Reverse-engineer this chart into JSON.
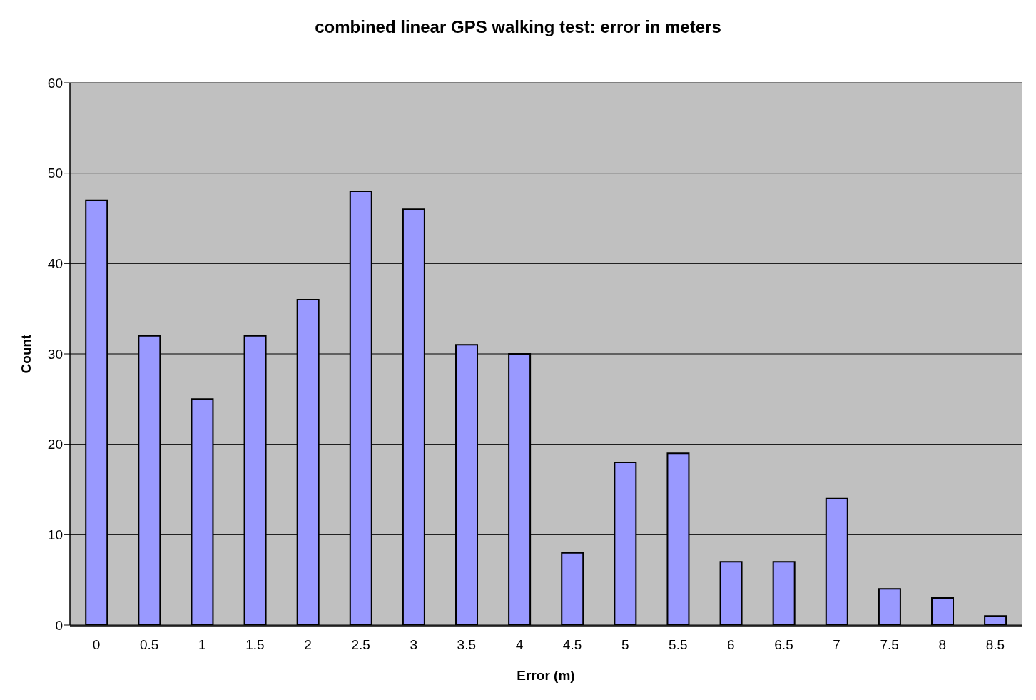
{
  "chart_data": {
    "type": "bar",
    "title": "combined linear GPS walking test: error in meters",
    "xlabel": "Error (m)",
    "ylabel": "Count",
    "categories": [
      "0",
      "0.5",
      "1",
      "1.5",
      "2",
      "2.5",
      "3",
      "3.5",
      "4",
      "4.5",
      "5",
      "5.5",
      "6",
      "6.5",
      "7",
      "7.5",
      "8",
      "8.5"
    ],
    "values": [
      47,
      32,
      25,
      32,
      36,
      48,
      46,
      31,
      30,
      8,
      18,
      19,
      7,
      7,
      14,
      4,
      3,
      1
    ],
    "color": "#9999ff",
    "ylim": [
      0,
      60
    ],
    "yticks": [
      0,
      10,
      20,
      30,
      40,
      50,
      60
    ],
    "grid": "y"
  }
}
